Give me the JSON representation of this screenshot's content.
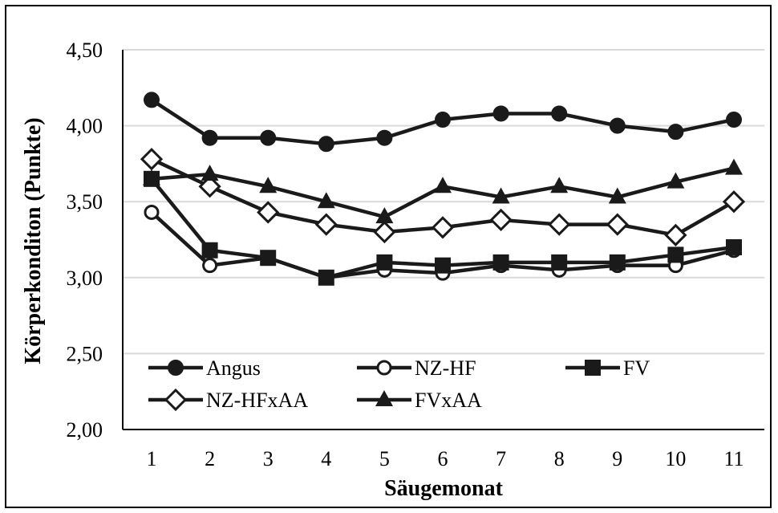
{
  "chart_data": {
    "type": "line",
    "title": "",
    "xlabel": "Säugemonat",
    "ylabel": "Körperkonditon (Punkte)",
    "x": [
      1,
      2,
      3,
      4,
      5,
      6,
      7,
      8,
      9,
      10,
      11
    ],
    "x_tick_labels": [
      "1",
      "2",
      "3",
      "4",
      "5",
      "6",
      "7",
      "8",
      "9",
      "10",
      "11"
    ],
    "ylim": [
      2.0,
      4.5
    ],
    "y_ticks": [
      2.0,
      2.5,
      3.0,
      3.5,
      4.0,
      4.5
    ],
    "y_tick_labels": [
      "2,00",
      "2,50",
      "3,00",
      "3,50",
      "4,00",
      "4,50"
    ],
    "grid": "horizontal",
    "legend_position": "bottom-left inside",
    "series": [
      {
        "name": "Angus",
        "marker": "filled-circle",
        "color": "#1a1a1a",
        "values": [
          4.17,
          3.92,
          3.92,
          3.88,
          3.92,
          4.04,
          4.08,
          4.08,
          4.0,
          3.96,
          4.04
        ]
      },
      {
        "name": "NZ-HF",
        "marker": "open-circle",
        "color": "#1a1a1a",
        "values": [
          3.43,
          3.08,
          3.13,
          3.0,
          3.05,
          3.03,
          3.08,
          3.05,
          3.08,
          3.08,
          3.18
        ]
      },
      {
        "name": "FV",
        "marker": "filled-square",
        "color": "#1a1a1a",
        "values": [
          3.65,
          3.18,
          3.13,
          3.0,
          3.1,
          3.08,
          3.1,
          3.1,
          3.1,
          3.15,
          3.2
        ]
      },
      {
        "name": "NZ-HFxAA",
        "marker": "open-diamond",
        "color": "#1a1a1a",
        "values": [
          3.78,
          3.6,
          3.43,
          3.35,
          3.3,
          3.33,
          3.38,
          3.35,
          3.35,
          3.28,
          3.5
        ]
      },
      {
        "name": "FVxAA",
        "marker": "filled-triangle",
        "color": "#1a1a1a",
        "values": [
          3.65,
          3.68,
          3.6,
          3.5,
          3.4,
          3.6,
          3.53,
          3.6,
          3.53,
          3.63,
          3.72
        ]
      }
    ]
  }
}
